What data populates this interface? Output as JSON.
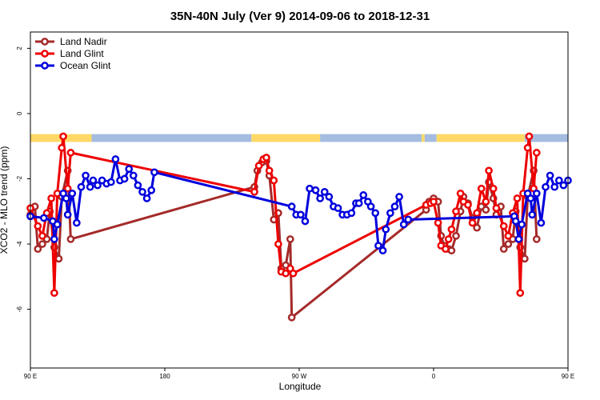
{
  "chart_data": {
    "type": "line",
    "title": "35N-40N July (Ver 9)   2014-09-06 to 2018-12-31",
    "xlabel": "Longitude",
    "ylabel": "XCO2 - MLO trend (ppm)",
    "xlim": [
      90,
      450
    ],
    "ylim": [
      -7.8,
      2.5
    ],
    "x_ticks": [
      {
        "value": 90,
        "label": "90 E"
      },
      {
        "value": 180,
        "label": "180"
      },
      {
        "value": 270,
        "label": "90 W"
      },
      {
        "value": 360,
        "label": "0"
      },
      {
        "value": 450,
        "label": "90 E"
      },
      {
        "value": 540,
        "label": "180"
      }
    ],
    "y_ticks": [
      {
        "value": 2,
        "label": "2"
      },
      {
        "value": 0,
        "label": "0"
      },
      {
        "value": -2,
        "label": "-2"
      },
      {
        "value": -4,
        "label": "-4"
      },
      {
        "value": -6,
        "label": "-6"
      }
    ],
    "legend_position": "top-left",
    "surface_bar": {
      "y_range": [
        -0.87,
        -0.63
      ],
      "colors": {
        "land": "#FFD966",
        "ocean": "#A4BCDF"
      },
      "segments": [
        {
          "start": 90,
          "end": 131,
          "kind": "land"
        },
        {
          "start": 131,
          "end": 238,
          "kind": "ocean"
        },
        {
          "start": 238,
          "end": 284,
          "kind": "land"
        },
        {
          "start": 284,
          "end": 352,
          "kind": "ocean"
        },
        {
          "start": 352,
          "end": 354,
          "kind": "land"
        },
        {
          "start": 354,
          "end": 362,
          "kind": "ocean"
        },
        {
          "start": 362,
          "end": 421,
          "kind": "land"
        },
        {
          "start": 421,
          "end": 540,
          "kind": "ocean"
        }
      ]
    },
    "series": [
      {
        "name": "Land Nadir",
        "color": "#A52A2A",
        "points": [
          [
            90,
            -3.1
          ],
          [
            93,
            -2.85
          ],
          [
            95,
            -4.15
          ],
          [
            98,
            -4.0
          ],
          [
            101,
            -3.85
          ],
          [
            103,
            -3.0
          ],
          [
            106,
            -4.1
          ],
          [
            109,
            -4.45
          ],
          [
            111,
            -2.55
          ],
          [
            115,
            -1.75
          ],
          [
            117,
            -3.85
          ],
          [
            240,
            -2.25
          ],
          [
            242,
            -1.75
          ],
          [
            245,
            -1.5
          ],
          [
            248,
            -1.45
          ],
          [
            250,
            -1.9
          ],
          [
            253,
            -3.25
          ],
          [
            256,
            -3.05
          ],
          [
            258,
            -4.75
          ],
          [
            261,
            -4.65
          ],
          [
            264,
            -3.85
          ],
          [
            265,
            -6.25
          ],
          [
            355,
            -2.95
          ],
          [
            357,
            -2.7
          ],
          [
            360,
            -2.6
          ],
          [
            363,
            -2.7
          ],
          [
            365,
            -3.75
          ],
          [
            367,
            -4.05
          ],
          [
            370,
            -4.15
          ],
          [
            372,
            -4.2
          ],
          [
            375,
            -3.75
          ],
          [
            378,
            -3.0
          ],
          [
            380,
            -2.55
          ],
          [
            383,
            -2.75
          ],
          [
            386,
            -3.2
          ],
          [
            389,
            -3.5
          ],
          [
            392,
            -2.85
          ],
          [
            395,
            -2.95
          ],
          [
            397,
            -2.1
          ],
          [
            400,
            -2.6
          ],
          [
            402,
            -3.1
          ],
          [
            405,
            -2.85
          ],
          [
            407,
            -4.15
          ],
          [
            410,
            -4.0
          ],
          [
            413,
            -3.85
          ],
          [
            415,
            -3.0
          ],
          [
            418,
            -4.1
          ],
          [
            421,
            -4.45
          ],
          [
            423,
            -2.55
          ],
          [
            427,
            -1.75
          ],
          [
            429,
            -3.85
          ]
        ]
      },
      {
        "name": "Land Glint",
        "color": "#EE0000",
        "points": [
          [
            90,
            -2.9
          ],
          [
            95,
            -3.45
          ],
          [
            98,
            -3.75
          ],
          [
            101,
            -3.05
          ],
          [
            104,
            -2.6
          ],
          [
            106,
            -5.5
          ],
          [
            108,
            -2.45
          ],
          [
            111,
            -1.05
          ],
          [
            112,
            -0.7
          ],
          [
            115,
            -2.3
          ],
          [
            117,
            -1.2
          ],
          [
            240,
            -2.4
          ],
          [
            243,
            -1.6
          ],
          [
            246,
            -1.4
          ],
          [
            248,
            -1.35
          ],
          [
            250,
            -1.75
          ],
          [
            253,
            -2.05
          ],
          [
            256,
            -4.0
          ],
          [
            258,
            -4.85
          ],
          [
            261,
            -4.9
          ],
          [
            264,
            -4.75
          ],
          [
            266,
            -4.9
          ],
          [
            355,
            -2.8
          ],
          [
            358,
            -2.75
          ],
          [
            360,
            -2.7
          ],
          [
            363,
            -3.35
          ],
          [
            365,
            -4.05
          ],
          [
            368,
            -4.15
          ],
          [
            370,
            -3.85
          ],
          [
            372,
            -3.55
          ],
          [
            375,
            -3.0
          ],
          [
            378,
            -2.45
          ],
          [
            380,
            -2.7
          ],
          [
            383,
            -2.8
          ],
          [
            386,
            -3.35
          ],
          [
            389,
            -3.05
          ],
          [
            392,
            -2.3
          ],
          [
            395,
            -2.7
          ],
          [
            397,
            -1.75
          ],
          [
            400,
            -2.3
          ],
          [
            402,
            -2.9
          ],
          [
            407,
            -3.45
          ],
          [
            410,
            -3.75
          ],
          [
            413,
            -3.05
          ],
          [
            416,
            -2.6
          ],
          [
            418,
            -5.5
          ],
          [
            420,
            -2.45
          ],
          [
            423,
            -1.05
          ],
          [
            424,
            -0.7
          ],
          [
            427,
            -2.3
          ],
          [
            429,
            -1.2
          ]
        ]
      },
      {
        "name": "Ocean Glint",
        "color": "#0000DD",
        "points": [
          [
            90,
            -3.15
          ],
          [
            99,
            -3.2
          ],
          [
            105,
            -3.3
          ],
          [
            106,
            -3.85
          ],
          [
            108,
            -3.4
          ],
          [
            112,
            -2.45
          ],
          [
            114,
            -2.6
          ],
          [
            115,
            -3.1
          ],
          [
            118,
            -2.45
          ],
          [
            121,
            -3.35
          ],
          [
            124,
            -2.25
          ],
          [
            127,
            -1.9
          ],
          [
            130,
            -2.25
          ],
          [
            132,
            -2.05
          ],
          [
            135,
            -2.2
          ],
          [
            138,
            -2.05
          ],
          [
            141,
            -2.15
          ],
          [
            144,
            -2.1
          ],
          [
            147,
            -1.4
          ],
          [
            150,
            -2.05
          ],
          [
            153,
            -2.0
          ],
          [
            156,
            -1.7
          ],
          [
            159,
            -1.9
          ],
          [
            162,
            -2.2
          ],
          [
            165,
            -2.4
          ],
          [
            168,
            -2.6
          ],
          [
            171,
            -2.35
          ],
          [
            173,
            -1.8
          ],
          [
            265,
            -2.85
          ],
          [
            268,
            -3.1
          ],
          [
            271,
            -3.1
          ],
          [
            274,
            -3.3
          ],
          [
            277,
            -2.3
          ],
          [
            281,
            -2.35
          ],
          [
            284,
            -2.6
          ],
          [
            287,
            -2.4
          ],
          [
            290,
            -2.55
          ],
          [
            293,
            -2.85
          ],
          [
            296,
            -2.9
          ],
          [
            299,
            -3.1
          ],
          [
            302,
            -3.1
          ],
          [
            305,
            -3.05
          ],
          [
            308,
            -2.75
          ],
          [
            310,
            -2.75
          ],
          [
            313,
            -2.5
          ],
          [
            316,
            -2.7
          ],
          [
            318,
            -2.85
          ],
          [
            321,
            -3.05
          ],
          [
            323,
            -4.05
          ],
          [
            326,
            -4.2
          ],
          [
            328,
            -3.55
          ],
          [
            331,
            -3.05
          ],
          [
            334,
            -2.85
          ],
          [
            337,
            -2.55
          ],
          [
            340,
            -3.4
          ],
          [
            343,
            -3.25
          ],
          [
            414,
            -3.15
          ],
          [
            415,
            -3.3
          ],
          [
            417,
            -3.85
          ],
          [
            419,
            -3.4
          ],
          [
            423,
            -2.45
          ],
          [
            425,
            -2.6
          ],
          [
            426,
            -3.1
          ],
          [
            429,
            -2.45
          ],
          [
            432,
            -3.35
          ],
          [
            435,
            -2.25
          ],
          [
            438,
            -1.9
          ],
          [
            441,
            -2.25
          ],
          [
            444,
            -2.05
          ],
          [
            447,
            -2.2
          ],
          [
            450,
            -2.05
          ]
        ]
      }
    ]
  }
}
